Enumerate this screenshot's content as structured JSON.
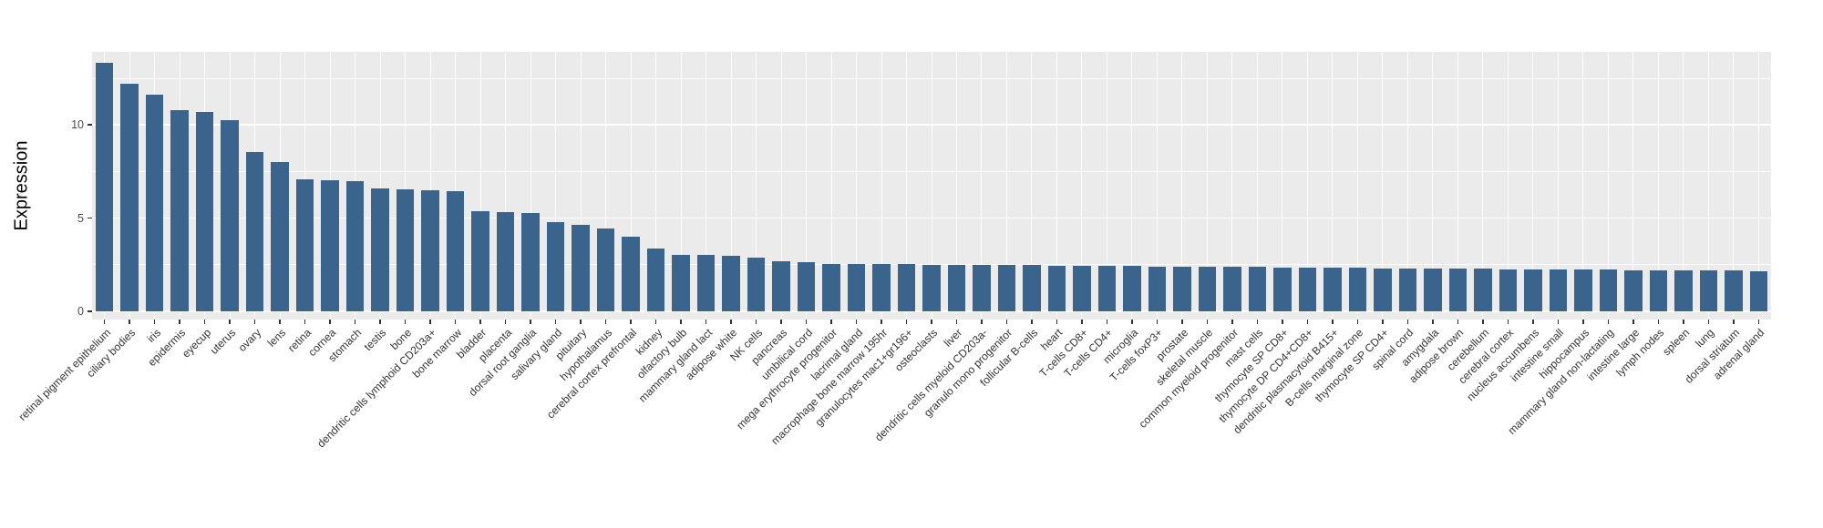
{
  "chart_data": {
    "type": "bar",
    "title": "",
    "xlabel": "",
    "ylabel": "Expression",
    "legend": "none",
    "grid": true,
    "sorted": "descending",
    "ylim": [
      0,
      13.9
    ],
    "yticks_major": [
      0,
      5,
      10
    ],
    "yticks_minor": [
      2.5,
      7.5,
      12.5
    ],
    "bar_color": "#3A648C",
    "panel_bg": "#EBEBEB",
    "grid_color": "#FFFFFF",
    "categories": [
      "retinal pigment epithelium",
      "ciliary bodies",
      "iris",
      "epidermis",
      "eyecup",
      "uterus",
      "ovary",
      "lens",
      "retina",
      "cornea",
      "stomach",
      "testis",
      "bone",
      "dendritic cells lymphoid CD203a+",
      "bone marrow",
      "bladder",
      "placenta",
      "dorsal root ganglia",
      "salivary gland",
      "pituitary",
      "hypothalamus",
      "cerebral cortex prefrontal",
      "kidney",
      "olfactory bulb",
      "mammary gland lact",
      "adipose white",
      "NK cells",
      "pancreas",
      "umbilical cord",
      "mega erythrocyte progenitor",
      "lacrimal gland",
      "macrophage bone marrow 195hr",
      "granulocytes mac1+gr196+",
      "osteoclasts",
      "liver",
      "dendritic cells myeloid CD203a-",
      "granulo mono progenitor",
      "follicular B-cells",
      "heart",
      "T-cells CD8+",
      "T-cells CD4+",
      "microglia",
      "T-cells foxP3+",
      "prostate",
      "skeletal muscle",
      "common myeloid progenitor",
      "mast cells",
      "thymocyte SP CD8+",
      "thymocyte DP CD4+CD8+",
      "dendritic plasmacytoid B415+",
      "B-cells marginal zone",
      "thymocyte SP CD4+",
      "spinal cord",
      "amygdala",
      "adipose brown",
      "cerebellum",
      "cerebral cortex",
      "nucleus accumbens",
      "intestine small",
      "hippocampus",
      "mammary gland non-lactating",
      "intestine large",
      "lymph nodes",
      "spleen",
      "lung",
      "dorsal striatum",
      "adrenal gland"
    ],
    "values": [
      13.33,
      12.2,
      11.6,
      10.8,
      10.7,
      10.25,
      8.55,
      8.0,
      7.1,
      7.05,
      7.0,
      6.6,
      6.55,
      6.5,
      6.45,
      5.35,
      5.3,
      5.25,
      4.8,
      4.65,
      4.45,
      4.0,
      3.35,
      3.05,
      3.02,
      2.98,
      2.88,
      2.68,
      2.66,
      2.56,
      2.55,
      2.54,
      2.52,
      2.51,
      2.5,
      2.49,
      2.48,
      2.47,
      2.46,
      2.44,
      2.43,
      2.42,
      2.41,
      2.4,
      2.39,
      2.38,
      2.37,
      2.36,
      2.35,
      2.34,
      2.33,
      2.32,
      2.31,
      2.3,
      2.29,
      2.28,
      2.27,
      2.26,
      2.25,
      2.24,
      2.23,
      2.22,
      2.21,
      2.2,
      2.19,
      2.18,
      2.17
    ]
  }
}
